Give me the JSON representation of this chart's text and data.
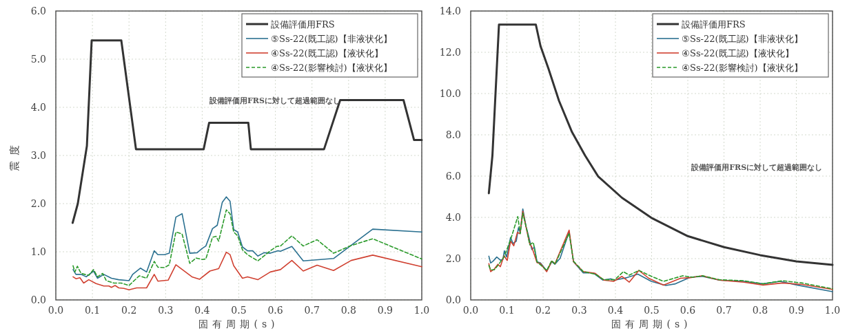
{
  "chart_data": [
    {
      "type": "line",
      "xlabel": "固有周期(s)",
      "ylabel": "震度",
      "xlim": [
        0,
        1
      ],
      "ylim": [
        0,
        6
      ],
      "xticks": [
        {
          "value": 0,
          "label": "0.0"
        },
        {
          "value": 0.1,
          "label": "0.1"
        },
        {
          "value": 0.2,
          "label": "0.2"
        },
        {
          "value": 0.3,
          "label": "0.3"
        },
        {
          "value": 0.4,
          "label": "0.4"
        },
        {
          "value": 0.5,
          "label": "0.5"
        },
        {
          "value": 0.6,
          "label": "0.6"
        },
        {
          "value": 0.7,
          "label": "0.7"
        },
        {
          "value": 0.8,
          "label": "0.8"
        },
        {
          "value": 0.9,
          "label": "0.9"
        },
        {
          "value": 1,
          "label": "1.0"
        }
      ],
      "yticks": [
        {
          "value": 0,
          "label": "0.0"
        },
        {
          "value": 1,
          "label": "1.0"
        },
        {
          "value": 2,
          "label": "2.0"
        },
        {
          "value": 3,
          "label": "3.0"
        },
        {
          "value": 4,
          "label": "4.0"
        },
        {
          "value": 5,
          "label": "5.0"
        },
        {
          "value": 6,
          "label": "6.0"
        }
      ],
      "grid": true,
      "legend": "top right",
      "annotations": [
        "設備評価用FRSに対して超過範囲なし"
      ],
      "series": [
        {
          "name": "設備評価用FRS",
          "color": "#333333",
          "line_style": "solid",
          "x": [
            0.046,
            0.06,
            0.085,
            0.098,
            0.179,
            0.219,
            0.404,
            0.419,
            0.526,
            0.533,
            0.733,
            0.777,
            0.95,
            0.979,
            1.0
          ],
          "values": [
            1.6,
            2.0,
            3.2,
            5.39,
            5.39,
            3.13,
            3.13,
            3.68,
            3.68,
            3.13,
            3.13,
            4.15,
            4.15,
            3.32,
            3.32
          ]
        },
        {
          "name": "⑤Ss-22(既工認)【非液状化】",
          "color": "#2a7090",
          "line_style": "solid",
          "x": [
            0.047,
            0.055,
            0.069,
            0.083,
            0.103,
            0.114,
            0.131,
            0.152,
            0.172,
            0.2,
            0.21,
            0.231,
            0.248,
            0.269,
            0.279,
            0.297,
            0.31,
            0.328,
            0.345,
            0.366,
            0.386,
            0.4,
            0.41,
            0.428,
            0.441,
            0.455,
            0.466,
            0.476,
            0.486,
            0.497,
            0.51,
            0.524,
            0.538,
            0.552,
            0.569,
            0.586,
            0.607,
            0.614,
            0.645,
            0.676,
            0.759,
            0.866,
            1.0
          ],
          "values": [
            0.63,
            0.53,
            0.53,
            0.48,
            0.6,
            0.45,
            0.53,
            0.45,
            0.42,
            0.4,
            0.53,
            0.66,
            0.58,
            1.02,
            0.94,
            0.94,
            0.97,
            1.72,
            1.79,
            0.97,
            0.98,
            1.07,
            1.12,
            1.48,
            1.55,
            2.03,
            2.14,
            2.05,
            1.46,
            1.41,
            1.1,
            1.02,
            1.02,
            0.91,
            0.98,
            0.97,
            1.02,
            1.01,
            1.11,
            0.81,
            0.86,
            1.47,
            1.41
          ]
        },
        {
          "name": "④Ss-22(既工認)【液状化】",
          "color": "#d04030",
          "line_style": "solid",
          "x": [
            0.047,
            0.055,
            0.066,
            0.076,
            0.09,
            0.11,
            0.131,
            0.145,
            0.152,
            0.162,
            0.172,
            0.186,
            0.2,
            0.221,
            0.248,
            0.269,
            0.279,
            0.307,
            0.328,
            0.372,
            0.393,
            0.421,
            0.445,
            0.466,
            0.476,
            0.486,
            0.51,
            0.524,
            0.552,
            0.586,
            0.614,
            0.645,
            0.676,
            0.714,
            0.759,
            0.807,
            0.866,
            1.0
          ],
          "values": [
            0.48,
            0.44,
            0.46,
            0.35,
            0.42,
            0.34,
            0.29,
            0.29,
            0.26,
            0.3,
            0.25,
            0.24,
            0.21,
            0.25,
            0.25,
            0.53,
            0.39,
            0.41,
            0.73,
            0.48,
            0.43,
            0.6,
            0.65,
            0.99,
            0.94,
            0.71,
            0.45,
            0.48,
            0.42,
            0.58,
            0.63,
            0.82,
            0.6,
            0.72,
            0.61,
            0.82,
            0.93,
            0.69
          ]
        },
        {
          "name": "④Ss-22(影響検討)【液状化】",
          "color": "#2a9a2a",
          "line_style": "dashed",
          "x": [
            0.047,
            0.052,
            0.059,
            0.069,
            0.09,
            0.103,
            0.114,
            0.128,
            0.138,
            0.159,
            0.179,
            0.2,
            0.214,
            0.228,
            0.248,
            0.269,
            0.279,
            0.297,
            0.31,
            0.328,
            0.345,
            0.366,
            0.383,
            0.4,
            0.41,
            0.428,
            0.438,
            0.445,
            0.466,
            0.476,
            0.486,
            0.497,
            0.51,
            0.524,
            0.552,
            0.586,
            0.603,
            0.614,
            0.645,
            0.676,
            0.714,
            0.759,
            0.807,
            0.866,
            1.0
          ],
          "values": [
            0.71,
            0.58,
            0.7,
            0.55,
            0.51,
            0.63,
            0.48,
            0.55,
            0.4,
            0.35,
            0.35,
            0.3,
            0.4,
            0.5,
            0.45,
            0.8,
            0.68,
            0.67,
            0.73,
            1.41,
            1.37,
            0.76,
            0.87,
            0.84,
            0.85,
            1.3,
            1.32,
            1.22,
            1.87,
            1.79,
            1.41,
            1.33,
            1.04,
            0.94,
            0.81,
            1.02,
            1.11,
            1.12,
            1.33,
            1.12,
            1.25,
            0.97,
            1.13,
            1.27,
            0.85
          ]
        }
      ]
    },
    {
      "type": "line",
      "xlabel": "固有周期(s)",
      "xlim": [
        0,
        1
      ],
      "ylim": [
        0,
        14
      ],
      "xticks": [
        {
          "value": 0,
          "label": "0.0"
        },
        {
          "value": 0.1,
          "label": "0.1"
        },
        {
          "value": 0.2,
          "label": "0.2"
        },
        {
          "value": 0.3,
          "label": "0.3"
        },
        {
          "value": 0.4,
          "label": "0.4"
        },
        {
          "value": 0.5,
          "label": "0.5"
        },
        {
          "value": 0.6,
          "label": "0.6"
        },
        {
          "value": 0.7,
          "label": "0.7"
        },
        {
          "value": 0.8,
          "label": "0.8"
        },
        {
          "value": 0.9,
          "label": "0.9"
        },
        {
          "value": 1,
          "label": "1.0"
        }
      ],
      "yticks": [
        {
          "value": 0,
          "label": "0.0"
        },
        {
          "value": 2,
          "label": "2.0"
        },
        {
          "value": 4,
          "label": "4.0"
        },
        {
          "value": 6,
          "label": "6.0"
        },
        {
          "value": 8,
          "label": "8.0"
        },
        {
          "value": 10,
          "label": "10.0"
        },
        {
          "value": 12,
          "label": "12.0"
        },
        {
          "value": 14,
          "label": "14.0"
        }
      ],
      "grid": true,
      "legend": "top right",
      "annotations": [
        "設備評価用FRSに対して超過範囲なし"
      ],
      "series": [
        {
          "name": "設備評価用FRS",
          "color": "#333333",
          "line_style": "solid",
          "x": [
            0.05,
            0.06,
            0.078,
            0.18,
            0.193,
            0.215,
            0.244,
            0.28,
            0.316,
            0.352,
            0.418,
            0.499,
            0.6,
            0.7,
            0.8,
            0.9,
            1.0
          ],
          "values": [
            5.17,
            7.0,
            13.34,
            13.34,
            12.3,
            11.2,
            9.65,
            8.13,
            7.0,
            5.99,
            4.95,
            3.98,
            3.09,
            2.56,
            2.17,
            1.87,
            1.7
          ]
        },
        {
          "name": "⑤Ss-22(既工認)【非液状化】",
          "color": "#2a7090",
          "line_style": "solid",
          "x": [
            0.05,
            0.055,
            0.062,
            0.072,
            0.082,
            0.089,
            0.093,
            0.099,
            0.11,
            0.117,
            0.126,
            0.132,
            0.137,
            0.144,
            0.153,
            0.161,
            0.169,
            0.176,
            0.183,
            0.193,
            0.21,
            0.224,
            0.233,
            0.247,
            0.272,
            0.284,
            0.311,
            0.338,
            0.365,
            0.388,
            0.398,
            0.432,
            0.462,
            0.499,
            0.539,
            0.566,
            0.607,
            0.64,
            0.687,
            0.755,
            0.808,
            0.855,
            0.902,
            1.0
          ],
          "values": [
            2.12,
            1.79,
            1.88,
            2.08,
            1.93,
            1.96,
            2.38,
            2.08,
            3.03,
            2.73,
            2.85,
            3.5,
            3.27,
            4.41,
            3.56,
            3.03,
            2.44,
            2.56,
            1.85,
            1.79,
            1.41,
            1.85,
            1.73,
            2.02,
            3.3,
            1.85,
            1.31,
            1.31,
            0.96,
            1.02,
            0.96,
            1.08,
            1.25,
            0.9,
            0.7,
            0.78,
            1.1,
            1.14,
            0.96,
            0.9,
            0.78,
            0.9,
            0.72,
            0.4
          ]
        },
        {
          "name": "④Ss-22(既工認)【液状化】",
          "color": "#d04030",
          "line_style": "solid",
          "x": [
            0.05,
            0.055,
            0.065,
            0.075,
            0.082,
            0.092,
            0.101,
            0.11,
            0.119,
            0.129,
            0.136,
            0.144,
            0.156,
            0.163,
            0.169,
            0.183,
            0.193,
            0.21,
            0.224,
            0.233,
            0.272,
            0.284,
            0.311,
            0.344,
            0.368,
            0.395,
            0.418,
            0.438,
            0.465,
            0.492,
            0.533,
            0.58,
            0.607,
            0.64,
            0.687,
            0.755,
            0.808,
            0.862,
            0.916,
            1.0
          ],
          "values": [
            1.76,
            1.37,
            1.49,
            1.73,
            1.61,
            2.14,
            1.91,
            2.85,
            2.62,
            3.27,
            3.21,
            4.3,
            3.27,
            2.73,
            2.56,
            1.81,
            1.76,
            1.37,
            1.88,
            1.76,
            3.38,
            1.85,
            1.37,
            1.29,
            0.96,
            0.9,
            1.14,
            0.86,
            1.43,
            1.05,
            0.72,
            1.05,
            1.08,
            1.17,
            0.96,
            0.86,
            0.72,
            0.82,
            0.75,
            0.51
          ]
        },
        {
          "name": "④Ss-22(影響検討)【液状化】",
          "color": "#2a9a2a",
          "line_style": "dashed",
          "x": [
            0.05,
            0.055,
            0.065,
            0.075,
            0.092,
            0.11,
            0.13,
            0.137,
            0.144,
            0.156,
            0.163,
            0.173,
            0.183,
            0.21,
            0.224,
            0.233,
            0.272,
            0.284,
            0.311,
            0.344,
            0.368,
            0.398,
            0.422,
            0.438,
            0.465,
            0.492,
            0.533,
            0.586,
            0.613,
            0.64,
            0.687,
            0.755,
            0.808,
            0.862,
            0.916,
            1.0
          ],
          "values": [
            1.67,
            1.46,
            1.46,
            1.67,
            2.08,
            2.91,
            4.04,
            3.21,
            4.21,
            3.33,
            2.67,
            2.79,
            1.85,
            1.43,
            1.91,
            1.73,
            3.23,
            1.88,
            1.37,
            1.25,
            0.98,
            0.98,
            1.37,
            1.2,
            1.43,
            1.2,
            0.9,
            1.17,
            1.1,
            1.17,
            0.98,
            0.93,
            0.78,
            0.93,
            0.82,
            0.54
          ]
        }
      ]
    }
  ]
}
